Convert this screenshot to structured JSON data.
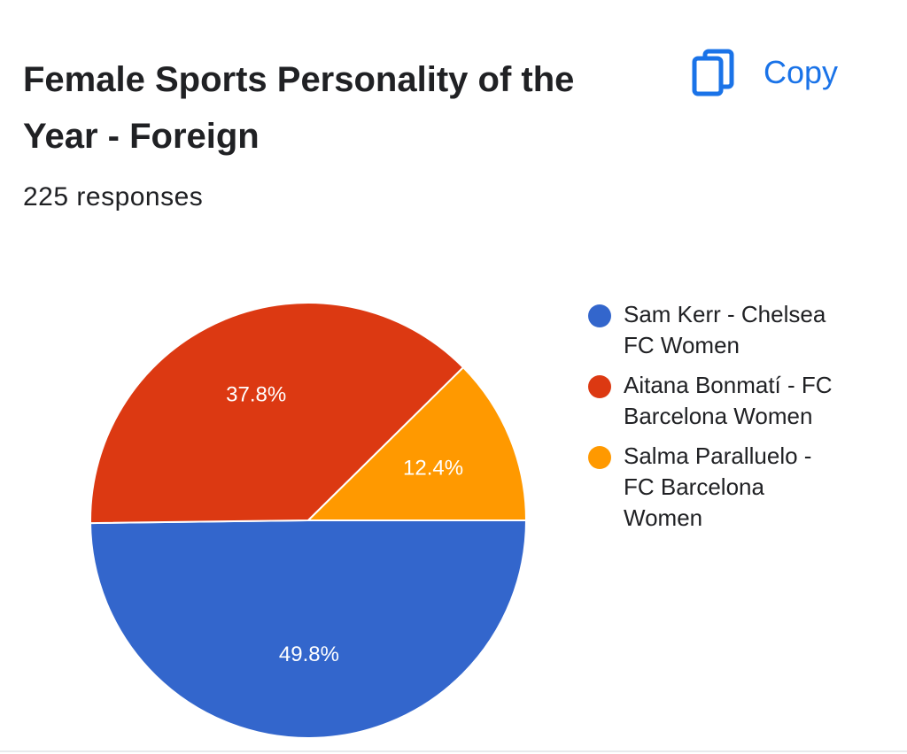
{
  "header": {
    "title": "Female Sports Personality of the Year - Foreign",
    "copy_label": "Copy",
    "copy_icon": "copy-icon",
    "responses": "225 responses"
  },
  "colors": {
    "accent": "#1a73e8",
    "series": [
      "#3366cc",
      "#dc3912",
      "#ff9900"
    ]
  },
  "chart_data": {
    "type": "pie",
    "title": "Female Sports Personality of the Year - Foreign",
    "total_responses": 225,
    "legend_position": "right",
    "slices": [
      {
        "label": "Sam Kerr - Chelsea FC Women",
        "value": 49.8,
        "display": "49.8%",
        "color": "#3366cc"
      },
      {
        "label": "Aitana Bonmatí - FC Barcelona Women",
        "value": 37.8,
        "display": "37.8%",
        "color": "#dc3912"
      },
      {
        "label": "Salma Paralluelo - FC Barcelona Women",
        "value": 12.4,
        "display": "12.4%",
        "color": "#ff9900"
      }
    ]
  },
  "legend": {
    "items": [
      {
        "lines": [
          "Sam Kerr - Chelsea",
          "FC Women"
        ]
      },
      {
        "lines": [
          "Aitana Bonmatí - FC",
          "Barcelona Women"
        ]
      },
      {
        "lines": [
          "Salma Paralluelo -",
          "FC Barcelona",
          "Women"
        ]
      }
    ]
  }
}
